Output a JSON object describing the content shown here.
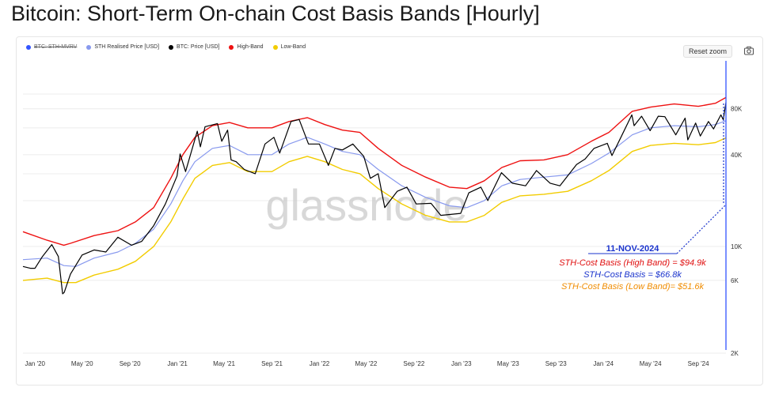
{
  "title": "Bitcoin: Short-Term On-chain Cost Basis Bands [Hourly]",
  "toolbar": {
    "reset_zoom": "Reset zoom",
    "camera_icon": "camera-icon"
  },
  "watermark": "glassnode",
  "colors": {
    "mvrv": "#3355ff",
    "realised": "#8899ee",
    "price": "#000000",
    "high": "#ee1111",
    "low": "#f2cc00",
    "annotation_date": "#1a33cc",
    "annotation_high": "#e01010",
    "annotation_mid": "#1a33cc",
    "annotation_low": "#f08c00"
  },
  "annotation": {
    "date": "11-NOV-2024",
    "high": "STH-Cost Basis (High Band) = $94.9k",
    "mid": "STH-Cost Basis = $66.8k",
    "low": "STH-Cost Basis  (Low Band)= $51.6k"
  },
  "chart_data": {
    "type": "line",
    "title": "Bitcoin: Short-Term On-chain Cost Basis Bands [Hourly]",
    "y_scale": "log",
    "ylim": [
      2000,
      150000
    ],
    "y_ticks": [
      {
        "value": 2000,
        "label": "2K"
      },
      {
        "value": 6000,
        "label": "6K"
      },
      {
        "value": 10000,
        "label": "10K"
      },
      {
        "value": 40000,
        "label": "40K"
      },
      {
        "value": 80000,
        "label": "80K"
      }
    ],
    "xlim": [
      "2019-12-01",
      "2024-11-11"
    ],
    "x_ticks": [
      {
        "date": "2020-01-01",
        "label": "Jan '20"
      },
      {
        "date": "2020-05-01",
        "label": "May '20"
      },
      {
        "date": "2020-09-01",
        "label": "Sep '20"
      },
      {
        "date": "2021-01-01",
        "label": "Jan '21"
      },
      {
        "date": "2021-05-01",
        "label": "May '21"
      },
      {
        "date": "2021-09-01",
        "label": "Sep '21"
      },
      {
        "date": "2022-01-01",
        "label": "Jan '22"
      },
      {
        "date": "2022-05-01",
        "label": "May '22"
      },
      {
        "date": "2022-09-01",
        "label": "Sep '22"
      },
      {
        "date": "2023-01-01",
        "label": "Jan '23"
      },
      {
        "date": "2023-05-01",
        "label": "May '23"
      },
      {
        "date": "2023-09-01",
        "label": "Sep '23"
      },
      {
        "date": "2024-01-01",
        "label": "Jan '24"
      },
      {
        "date": "2024-05-01",
        "label": "May '24"
      },
      {
        "date": "2024-09-01",
        "label": "Sep '24"
      }
    ],
    "legend_position": "top-left",
    "grid": "horizontal",
    "legend": [
      {
        "key": "mvrv",
        "label": "BTC: STH-MVRV",
        "hidden": true
      },
      {
        "key": "realised",
        "label": "STH Realised Price [USD]",
        "hidden": false
      },
      {
        "key": "price",
        "label": "BTC: Price [USD]",
        "hidden": false
      },
      {
        "key": "high",
        "label": "High-Band",
        "hidden": false
      },
      {
        "key": "low",
        "label": "Low-Band",
        "hidden": false
      }
    ],
    "series": [
      {
        "key": "high",
        "name": "High-Band",
        "points": [
          [
            "2019-12-01",
            12500
          ],
          [
            "2020-02-01",
            11000
          ],
          [
            "2020-03-15",
            10200
          ],
          [
            "2020-04-01",
            10500
          ],
          [
            "2020-06-01",
            11800
          ],
          [
            "2020-08-01",
            12700
          ],
          [
            "2020-09-15",
            14500
          ],
          [
            "2020-11-01",
            18000
          ],
          [
            "2020-12-15",
            28000
          ],
          [
            "2021-01-15",
            40000
          ],
          [
            "2021-02-15",
            52000
          ],
          [
            "2021-04-01",
            62000
          ],
          [
            "2021-05-15",
            65000
          ],
          [
            "2021-07-01",
            60000
          ],
          [
            "2021-09-01",
            60000
          ],
          [
            "2021-10-15",
            66000
          ],
          [
            "2021-12-01",
            70000
          ],
          [
            "2022-01-15",
            63000
          ],
          [
            "2022-03-01",
            58000
          ],
          [
            "2022-04-15",
            56000
          ],
          [
            "2022-06-01",
            44000
          ],
          [
            "2022-08-01",
            34000
          ],
          [
            "2022-10-01",
            28500
          ],
          [
            "2022-12-01",
            24500
          ],
          [
            "2023-01-15",
            24000
          ],
          [
            "2023-03-01",
            27000
          ],
          [
            "2023-04-15",
            33000
          ],
          [
            "2023-06-01",
            36500
          ],
          [
            "2023-08-01",
            37000
          ],
          [
            "2023-10-01",
            40000
          ],
          [
            "2023-12-01",
            49000
          ],
          [
            "2024-01-15",
            56000
          ],
          [
            "2024-03-15",
            77000
          ],
          [
            "2024-05-01",
            82000
          ],
          [
            "2024-07-01",
            86000
          ],
          [
            "2024-09-01",
            83000
          ],
          [
            "2024-10-15",
            87000
          ],
          [
            "2024-11-11",
            94900
          ]
        ]
      },
      {
        "key": "realised",
        "name": "STH Realised Price [USD]",
        "points": [
          [
            "2019-12-01",
            8200
          ],
          [
            "2020-02-01",
            8400
          ],
          [
            "2020-03-15",
            7500
          ],
          [
            "2020-04-15",
            7400
          ],
          [
            "2020-06-01",
            8400
          ],
          [
            "2020-08-01",
            9200
          ],
          [
            "2020-09-15",
            10500
          ],
          [
            "2020-11-01",
            13000
          ],
          [
            "2020-12-15",
            19000
          ],
          [
            "2021-01-15",
            27000
          ],
          [
            "2021-02-15",
            36000
          ],
          [
            "2021-04-01",
            44000
          ],
          [
            "2021-05-15",
            46000
          ],
          [
            "2021-07-01",
            40000
          ],
          [
            "2021-09-01",
            40000
          ],
          [
            "2021-10-15",
            47000
          ],
          [
            "2021-12-01",
            52000
          ],
          [
            "2022-01-15",
            47000
          ],
          [
            "2022-03-01",
            42000
          ],
          [
            "2022-04-15",
            40000
          ],
          [
            "2022-06-01",
            32000
          ],
          [
            "2022-08-01",
            25000
          ],
          [
            "2022-10-01",
            21000
          ],
          [
            "2022-12-01",
            18500
          ],
          [
            "2023-01-15",
            18000
          ],
          [
            "2023-03-01",
            20000
          ],
          [
            "2023-04-15",
            25000
          ],
          [
            "2023-06-01",
            27500
          ],
          [
            "2023-08-01",
            28500
          ],
          [
            "2023-10-01",
            29500
          ],
          [
            "2023-12-01",
            35000
          ],
          [
            "2024-01-15",
            41000
          ],
          [
            "2024-03-15",
            54000
          ],
          [
            "2024-05-01",
            60000
          ],
          [
            "2024-07-01",
            62000
          ],
          [
            "2024-09-01",
            61000
          ],
          [
            "2024-10-15",
            63000
          ],
          [
            "2024-11-11",
            66800
          ]
        ]
      },
      {
        "key": "low",
        "name": "Low-Band",
        "points": [
          [
            "2019-12-01",
            6000
          ],
          [
            "2020-02-01",
            6200
          ],
          [
            "2020-03-15",
            5800
          ],
          [
            "2020-04-15",
            5800
          ],
          [
            "2020-06-01",
            6500
          ],
          [
            "2020-08-01",
            7100
          ],
          [
            "2020-09-15",
            8000
          ],
          [
            "2020-11-01",
            10000
          ],
          [
            "2020-12-15",
            14500
          ],
          [
            "2021-01-15",
            20500
          ],
          [
            "2021-02-15",
            28000
          ],
          [
            "2021-04-01",
            34000
          ],
          [
            "2021-05-15",
            35500
          ],
          [
            "2021-07-01",
            31000
          ],
          [
            "2021-09-01",
            31000
          ],
          [
            "2021-10-15",
            36000
          ],
          [
            "2021-12-01",
            39000
          ],
          [
            "2022-01-15",
            36000
          ],
          [
            "2022-03-01",
            32000
          ],
          [
            "2022-04-15",
            30000
          ],
          [
            "2022-06-01",
            24000
          ],
          [
            "2022-08-01",
            19000
          ],
          [
            "2022-10-01",
            16000
          ],
          [
            "2022-12-01",
            14500
          ],
          [
            "2023-01-15",
            14500
          ],
          [
            "2023-03-01",
            16000
          ],
          [
            "2023-04-15",
            19500
          ],
          [
            "2023-06-01",
            21500
          ],
          [
            "2023-08-01",
            22000
          ],
          [
            "2023-10-01",
            23000
          ],
          [
            "2023-12-01",
            27000
          ],
          [
            "2024-01-15",
            31500
          ],
          [
            "2024-03-15",
            42000
          ],
          [
            "2024-05-01",
            46000
          ],
          [
            "2024-07-01",
            47500
          ],
          [
            "2024-09-01",
            46500
          ],
          [
            "2024-10-15",
            48000
          ],
          [
            "2024-11-11",
            51600
          ]
        ]
      },
      {
        "key": "price",
        "name": "BTC: Price [USD]",
        "points": [
          [
            "2019-12-01",
            7400
          ],
          [
            "2019-12-20",
            7200
          ],
          [
            "2020-01-01",
            7200
          ],
          [
            "2020-01-20",
            8600
          ],
          [
            "2020-02-13",
            10300
          ],
          [
            "2020-03-01",
            8600
          ],
          [
            "2020-03-12",
            4900
          ],
          [
            "2020-03-16",
            5000
          ],
          [
            "2020-04-01",
            6600
          ],
          [
            "2020-05-01",
            8800
          ],
          [
            "2020-06-01",
            9500
          ],
          [
            "2020-07-01",
            9200
          ],
          [
            "2020-08-01",
            11500
          ],
          [
            "2020-09-05",
            10200
          ],
          [
            "2020-10-01",
            10800
          ],
          [
            "2020-11-01",
            13700
          ],
          [
            "2020-12-01",
            19000
          ],
          [
            "2020-12-31",
            29000
          ],
          [
            "2021-01-08",
            40500
          ],
          [
            "2021-01-22",
            31000
          ],
          [
            "2021-02-21",
            57000
          ],
          [
            "2021-03-01",
            45000
          ],
          [
            "2021-03-13",
            61000
          ],
          [
            "2021-04-14",
            64000
          ],
          [
            "2021-04-25",
            49000
          ],
          [
            "2021-05-10",
            58000
          ],
          [
            "2021-05-19",
            37000
          ],
          [
            "2021-06-01",
            36000
          ],
          [
            "2021-06-22",
            32000
          ],
          [
            "2021-07-20",
            30000
          ],
          [
            "2021-08-14",
            47000
          ],
          [
            "2021-09-06",
            52000
          ],
          [
            "2021-09-21",
            41000
          ],
          [
            "2021-10-20",
            66000
          ],
          [
            "2021-11-10",
            68000
          ],
          [
            "2021-12-04",
            47000
          ],
          [
            "2022-01-01",
            47000
          ],
          [
            "2022-01-24",
            34000
          ],
          [
            "2022-02-10",
            44000
          ],
          [
            "2022-03-01",
            43000
          ],
          [
            "2022-03-28",
            47000
          ],
          [
            "2022-04-25",
            39000
          ],
          [
            "2022-05-12",
            28000
          ],
          [
            "2022-06-01",
            30000
          ],
          [
            "2022-06-18",
            18000
          ],
          [
            "2022-07-20",
            23000
          ],
          [
            "2022-08-14",
            24500
          ],
          [
            "2022-09-07",
            19000
          ],
          [
            "2022-10-15",
            19200
          ],
          [
            "2022-11-09",
            16000
          ],
          [
            "2022-12-30",
            16500
          ],
          [
            "2023-01-20",
            22500
          ],
          [
            "2023-02-20",
            24500
          ],
          [
            "2023-03-10",
            20000
          ],
          [
            "2023-04-14",
            30500
          ],
          [
            "2023-05-12",
            26000
          ],
          [
            "2023-06-15",
            25000
          ],
          [
            "2023-07-13",
            31500
          ],
          [
            "2023-08-17",
            26000
          ],
          [
            "2023-09-11",
            25000
          ],
          [
            "2023-10-24",
            34500
          ],
          [
            "2023-11-15",
            37500
          ],
          [
            "2023-12-08",
            44000
          ],
          [
            "2024-01-11",
            47500
          ],
          [
            "2024-01-23",
            39500
          ],
          [
            "2024-02-15",
            52000
          ],
          [
            "2024-03-14",
            73000
          ],
          [
            "2024-03-20",
            62000
          ],
          [
            "2024-04-08",
            71500
          ],
          [
            "2024-04-30",
            57500
          ],
          [
            "2024-05-21",
            71500
          ],
          [
            "2024-06-07",
            71000
          ],
          [
            "2024-07-05",
            54000
          ],
          [
            "2024-07-29",
            69500
          ],
          [
            "2024-08-05",
            50000
          ],
          [
            "2024-08-25",
            64500
          ],
          [
            "2024-09-06",
            53000
          ],
          [
            "2024-09-27",
            66000
          ],
          [
            "2024-10-10",
            59000
          ],
          [
            "2024-10-29",
            73000
          ],
          [
            "2024-11-04",
            67800
          ],
          [
            "2024-11-11",
            88000
          ]
        ]
      }
    ]
  }
}
